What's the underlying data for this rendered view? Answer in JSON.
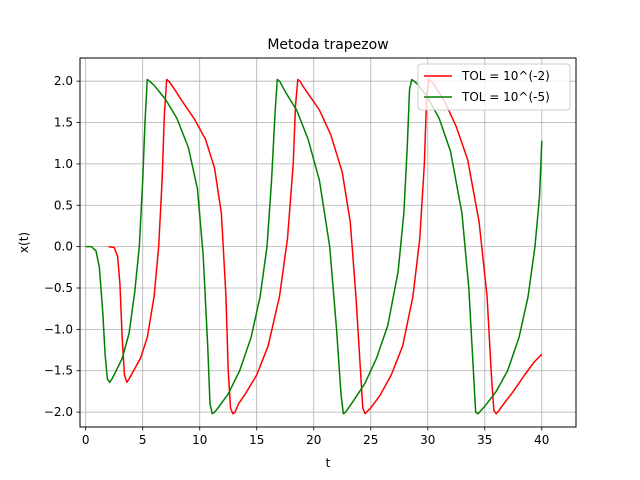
{
  "chart_data": {
    "type": "line",
    "title": "Metoda trapezow",
    "xlabel": "t",
    "ylabel": "x(t)",
    "xlim": [
      -0.5,
      43
    ],
    "ylim": [
      -2.18,
      2.28
    ],
    "xticks": [
      0,
      5,
      10,
      15,
      20,
      25,
      30,
      35,
      40
    ],
    "xtick_labels": [
      "0",
      "5",
      "10",
      "15",
      "20",
      "25",
      "30",
      "35",
      "40"
    ],
    "yticks": [
      -2.0,
      -1.5,
      -1.0,
      -0.5,
      0.0,
      0.5,
      1.0,
      1.5,
      2.0
    ],
    "ytick_labels": [
      "−2.0",
      "−1.5",
      "−1.0",
      "−0.5",
      "0.0",
      "0.5",
      "1.0",
      "1.5",
      "2.0"
    ],
    "grid": true,
    "legend_position": "top-right",
    "series": [
      {
        "name": "TOL = 10^(-2)",
        "color": "#ff0000",
        "x": [
          2.0,
          2.5,
          2.8,
          3.0,
          3.2,
          3.4,
          3.6,
          3.8,
          4.2,
          4.8,
          5.4,
          6.0,
          6.4,
          6.7,
          6.9,
          7.1,
          7.3,
          7.8,
          8.5,
          9.5,
          10.5,
          11.3,
          11.9,
          12.3,
          12.5,
          12.7,
          12.9,
          13.1,
          13.4,
          14.0,
          15.0,
          16.0,
          17.0,
          17.7,
          18.2,
          18.4,
          18.6,
          18.8,
          19.0,
          19.5,
          20.5,
          21.5,
          22.5,
          23.2,
          23.7,
          24.1,
          24.3,
          24.5,
          24.7,
          25.0,
          25.8,
          26.8,
          27.8,
          28.7,
          29.3,
          29.7,
          29.9,
          30.1,
          30.3,
          30.6,
          31.5,
          32.5,
          33.5,
          34.5,
          35.2,
          35.6,
          35.8,
          36.0,
          36.2,
          36.5,
          37.5,
          38.5,
          39.3,
          40.0
        ],
        "y": [
          0.0,
          -0.01,
          -0.12,
          -0.45,
          -1.1,
          -1.55,
          -1.64,
          -1.6,
          -1.5,
          -1.35,
          -1.1,
          -0.6,
          0.0,
          0.8,
          1.6,
          2.02,
          2.0,
          1.9,
          1.75,
          1.55,
          1.3,
          0.95,
          0.4,
          -0.6,
          -1.5,
          -1.95,
          -2.02,
          -2.0,
          -1.9,
          -1.78,
          -1.55,
          -1.2,
          -0.6,
          0.1,
          1.0,
          1.7,
          2.02,
          2.0,
          1.95,
          1.85,
          1.65,
          1.35,
          0.9,
          0.3,
          -0.6,
          -1.5,
          -1.95,
          -2.02,
          -1.99,
          -1.95,
          -1.8,
          -1.55,
          -1.2,
          -0.6,
          0.1,
          1.0,
          1.8,
          2.02,
          2.0,
          1.95,
          1.75,
          1.45,
          1.05,
          0.3,
          -0.6,
          -1.6,
          -1.98,
          -2.02,
          -1.99,
          -1.93,
          -1.75,
          -1.55,
          -1.4,
          -1.3
        ]
      },
      {
        "name": "TOL = 10^(-5)",
        "color": "#008000",
        "x": [
          0.0,
          0.5,
          0.9,
          1.2,
          1.5,
          1.7,
          1.9,
          2.1,
          2.3,
          2.6,
          3.2,
          3.8,
          4.3,
          4.7,
          5.0,
          5.2,
          5.4,
          5.6,
          6.0,
          7.0,
          8.0,
          9.0,
          9.8,
          10.3,
          10.7,
          10.9,
          11.1,
          11.3,
          11.6,
          12.5,
          13.5,
          14.5,
          15.3,
          15.9,
          16.3,
          16.6,
          16.8,
          17.0,
          17.2,
          17.6,
          18.5,
          19.5,
          20.5,
          21.4,
          22.0,
          22.4,
          22.6,
          22.8,
          23.0,
          23.4,
          24.5,
          25.5,
          26.5,
          27.4,
          27.9,
          28.2,
          28.4,
          28.6,
          28.8,
          29.2,
          30.0,
          31.0,
          32.0,
          33.0,
          33.6,
          34.0,
          34.2,
          34.4,
          34.6,
          35.0,
          36.0,
          37.0,
          38.0,
          38.8,
          39.4,
          39.8,
          40.0
        ],
        "y": [
          0.0,
          0.0,
          -0.05,
          -0.25,
          -0.8,
          -1.3,
          -1.6,
          -1.64,
          -1.6,
          -1.52,
          -1.35,
          -1.05,
          -0.55,
          0.0,
          0.8,
          1.5,
          2.02,
          2.0,
          1.95,
          1.78,
          1.55,
          1.2,
          0.7,
          -0.1,
          -1.2,
          -1.9,
          -2.02,
          -2.0,
          -1.95,
          -1.78,
          -1.5,
          -1.1,
          -0.6,
          0.0,
          0.8,
          1.6,
          2.02,
          2.0,
          1.95,
          1.85,
          1.65,
          1.3,
          0.8,
          0.0,
          -1.0,
          -1.8,
          -2.02,
          -2.0,
          -1.96,
          -1.88,
          -1.65,
          -1.35,
          -0.95,
          -0.3,
          0.4,
          1.2,
          1.9,
          2.02,
          2.0,
          1.95,
          1.8,
          1.55,
          1.15,
          0.4,
          -0.5,
          -1.5,
          -2.0,
          -2.02,
          -1.99,
          -1.93,
          -1.75,
          -1.5,
          -1.1,
          -0.6,
          0.0,
          0.6,
          1.28
        ]
      }
    ]
  }
}
